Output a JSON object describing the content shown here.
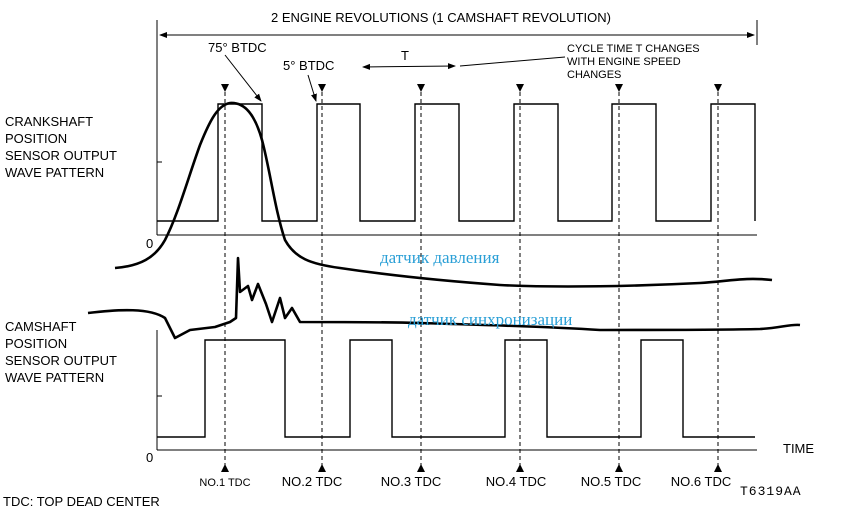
{
  "header": {
    "title": "2 ENGINE REVOLUTIONS (1 CAMSHAFT REVOLUTION)"
  },
  "annotations": {
    "advance_75": "75° BTDC",
    "advance_5": "5° BTDC",
    "period": "T",
    "cycle_note": [
      "CYCLE TIME T CHANGES",
      "WITH ENGINE SPEED",
      "CHANGES"
    ]
  },
  "crankshaft_label": [
    "CRANKSHAFT",
    "POSITION",
    "SENSOR OUTPUT",
    "WAVE PATTERN"
  ],
  "camshaft_label": [
    "CAMSHAFT",
    "POSITION",
    "SENSOR OUTPUT",
    "WAVE PATTERN"
  ],
  "zero_labels": [
    "0",
    "0"
  ],
  "handwritten": {
    "pressure": "датчик давления",
    "sync": "датчик синхронизации"
  },
  "time_label": "TIME",
  "tdc_labels": [
    "NO.1 TDC",
    "NO.2 TDC",
    "NO.3 TDC",
    "NO.4 TDC",
    "NO.5 TDC",
    "NO.6 TDC"
  ],
  "figure_code": "T6319AA",
  "footnote": "TDC: TOP DEAD CENTER"
}
